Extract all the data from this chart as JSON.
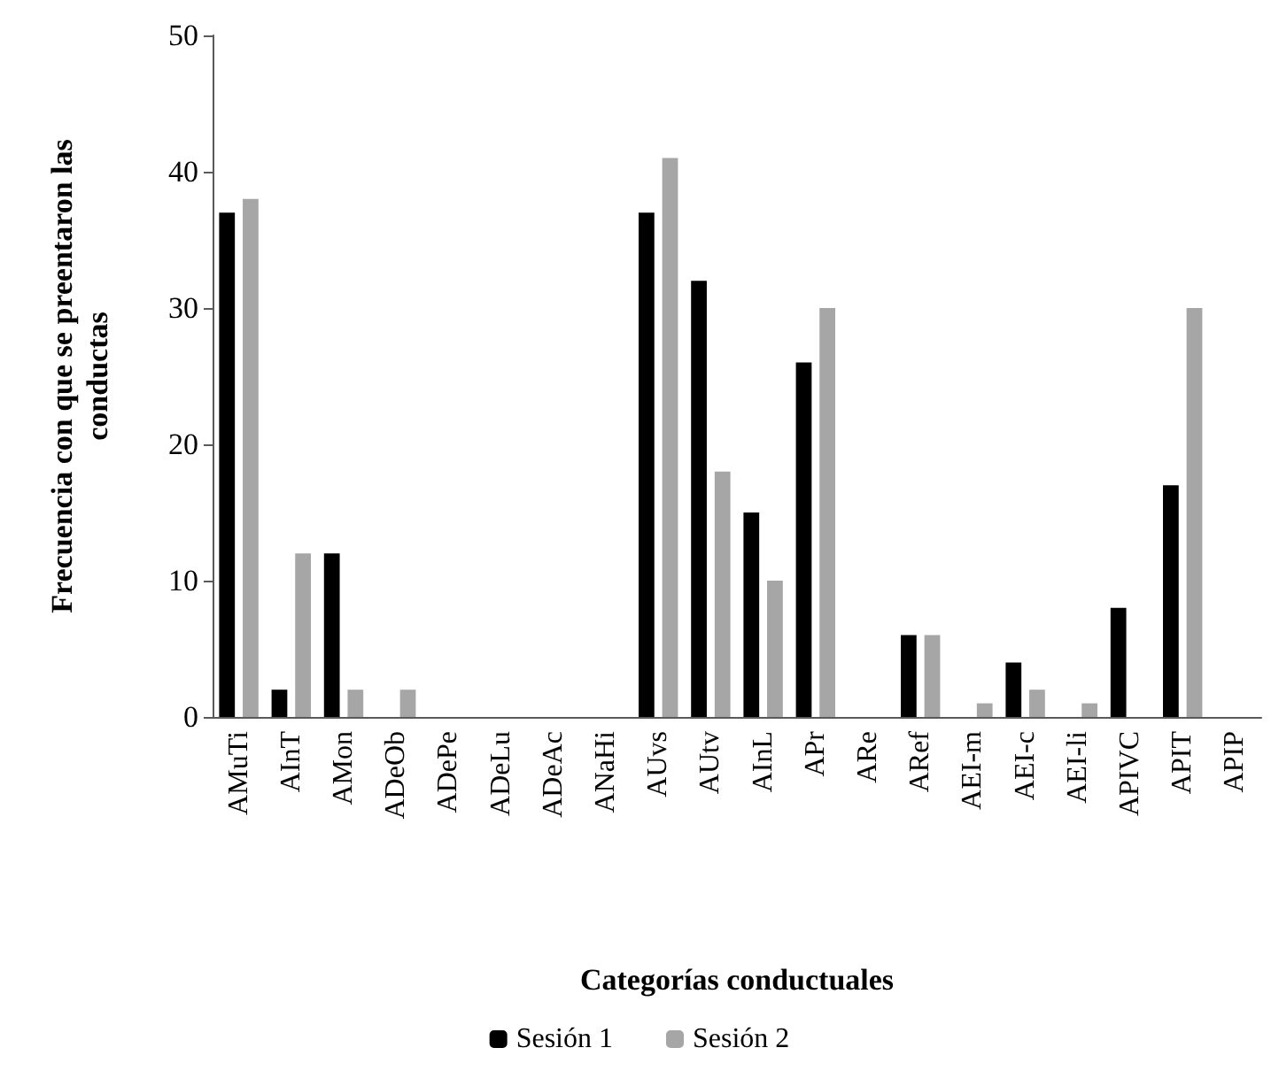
{
  "chart_data": {
    "type": "bar",
    "xlabel": "Categorías conductuales",
    "ylabel": "Frecuencia con que se preentaron las conductas",
    "categories": [
      "AMuTi",
      "AInT",
      "AMon",
      "ADeOb",
      "ADePe",
      "ADeLu",
      "ADeAc",
      "ANaHi",
      "AUvs",
      "AUtv",
      "AInL",
      "APr",
      "ARe",
      "ARef",
      "AEI-m",
      "AEI-c",
      "AEI-li",
      "APIVC",
      "APIT",
      "APIP"
    ],
    "series": [
      {
        "name": "Sesión 1",
        "color": "#000000",
        "values": [
          37,
          2,
          12,
          0,
          0,
          0,
          0,
          0,
          37,
          32,
          15,
          26,
          0,
          6,
          0,
          4,
          0,
          8,
          17,
          0
        ]
      },
      {
        "name": "Sesión 2",
        "color": "#a6a6a6",
        "values": [
          38,
          12,
          2,
          2,
          0,
          0,
          0,
          0,
          41,
          18,
          10,
          30,
          0,
          6,
          1,
          2,
          1,
          0,
          30,
          0
        ]
      }
    ],
    "ylim": [
      0,
      50
    ],
    "yticks": [
      0,
      10,
      20,
      30,
      40,
      50
    ],
    "grid": false,
    "legend": "bottom"
  }
}
